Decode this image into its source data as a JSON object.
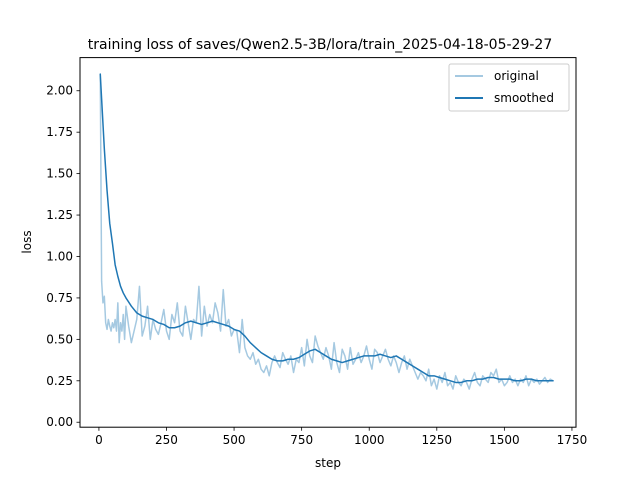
{
  "chart_data": {
    "type": "line",
    "title": "training loss of saves/Qwen2.5-3B/lora/train_2025-04-18-05-29-27",
    "xlabel": "step",
    "ylabel": "loss",
    "xlim": [
      -70,
      1765
    ],
    "ylim": [
      -0.03,
      2.2
    ],
    "xticks": [
      0,
      250,
      500,
      750,
      1000,
      1250,
      1500,
      1750
    ],
    "yticks": [
      0.0,
      0.25,
      0.5,
      0.75,
      1.0,
      1.25,
      1.5,
      1.75,
      2.0
    ],
    "xtick_labels": [
      "0",
      "250",
      "500",
      "750",
      "1000",
      "1250",
      "1500",
      "1750"
    ],
    "ytick_labels": [
      "0.00",
      "0.25",
      "0.50",
      "0.75",
      "1.00",
      "1.25",
      "1.50",
      "1.75",
      "2.00"
    ],
    "grid": false,
    "legend": {
      "position": "top-right"
    },
    "series": [
      {
        "name": "original",
        "color": "#1f77b4",
        "opacity": 0.4,
        "x": [
          5,
          10,
          15,
          20,
          25,
          30,
          35,
          40,
          45,
          50,
          55,
          60,
          65,
          70,
          75,
          80,
          85,
          90,
          95,
          100,
          110,
          120,
          130,
          140,
          150,
          160,
          170,
          180,
          190,
          200,
          210,
          220,
          230,
          240,
          250,
          260,
          270,
          280,
          290,
          300,
          310,
          320,
          330,
          340,
          350,
          360,
          370,
          380,
          390,
          400,
          410,
          420,
          430,
          440,
          450,
          460,
          470,
          480,
          490,
          500,
          510,
          520,
          530,
          540,
          550,
          560,
          570,
          580,
          590,
          600,
          610,
          620,
          630,
          640,
          650,
          660,
          670,
          680,
          690,
          700,
          710,
          720,
          730,
          740,
          750,
          760,
          770,
          780,
          790,
          800,
          810,
          820,
          830,
          840,
          850,
          860,
          870,
          880,
          890,
          900,
          910,
          920,
          930,
          940,
          950,
          960,
          970,
          980,
          990,
          1000,
          1010,
          1020,
          1030,
          1040,
          1050,
          1060,
          1070,
          1080,
          1090,
          1100,
          1110,
          1120,
          1130,
          1140,
          1150,
          1160,
          1170,
          1180,
          1190,
          1200,
          1210,
          1220,
          1230,
          1240,
          1250,
          1260,
          1270,
          1280,
          1290,
          1300,
          1310,
          1320,
          1330,
          1340,
          1350,
          1360,
          1370,
          1380,
          1390,
          1400,
          1410,
          1420,
          1430,
          1440,
          1450,
          1460,
          1470,
          1480,
          1490,
          1500,
          1510,
          1520,
          1530,
          1540,
          1550,
          1560,
          1570,
          1580,
          1590,
          1600,
          1610,
          1620,
          1630,
          1640,
          1650,
          1660,
          1670,
          1680
        ],
        "y": [
          2.1,
          0.85,
          0.72,
          0.76,
          0.6,
          0.56,
          0.62,
          0.58,
          0.55,
          0.6,
          0.57,
          0.62,
          0.55,
          0.72,
          0.48,
          0.6,
          0.55,
          0.65,
          0.5,
          0.7,
          0.58,
          0.48,
          0.55,
          0.62,
          0.82,
          0.52,
          0.58,
          0.7,
          0.5,
          0.62,
          0.56,
          0.53,
          0.6,
          0.68,
          0.55,
          0.5,
          0.65,
          0.6,
          0.72,
          0.55,
          0.52,
          0.7,
          0.6,
          0.5,
          0.62,
          0.6,
          0.82,
          0.52,
          0.7,
          0.58,
          0.65,
          0.6,
          0.72,
          0.66,
          0.55,
          0.8,
          0.58,
          0.62,
          0.52,
          0.56,
          0.55,
          0.42,
          0.62,
          0.45,
          0.4,
          0.38,
          0.42,
          0.35,
          0.38,
          0.32,
          0.3,
          0.34,
          0.28,
          0.36,
          0.4,
          0.36,
          0.33,
          0.42,
          0.38,
          0.35,
          0.4,
          0.3,
          0.38,
          0.36,
          0.45,
          0.34,
          0.5,
          0.4,
          0.36,
          0.52,
          0.46,
          0.42,
          0.38,
          0.45,
          0.4,
          0.32,
          0.48,
          0.36,
          0.3,
          0.44,
          0.4,
          0.32,
          0.45,
          0.35,
          0.38,
          0.42,
          0.36,
          0.4,
          0.46,
          0.38,
          0.32,
          0.44,
          0.42,
          0.36,
          0.4,
          0.44,
          0.38,
          0.34,
          0.4,
          0.36,
          0.3,
          0.36,
          0.4,
          0.32,
          0.38,
          0.34,
          0.3,
          0.26,
          0.3,
          0.28,
          0.25,
          0.32,
          0.22,
          0.26,
          0.2,
          0.28,
          0.24,
          0.3,
          0.22,
          0.24,
          0.2,
          0.28,
          0.24,
          0.22,
          0.26,
          0.24,
          0.2,
          0.26,
          0.3,
          0.24,
          0.22,
          0.28,
          0.26,
          0.24,
          0.3,
          0.28,
          0.32,
          0.24,
          0.26,
          0.22,
          0.24,
          0.28,
          0.24,
          0.26,
          0.22,
          0.26,
          0.24,
          0.28,
          0.22,
          0.26,
          0.24,
          0.26,
          0.23,
          0.25,
          0.27,
          0.24,
          0.26,
          0.25
        ]
      },
      {
        "name": "smoothed",
        "color": "#1f77b4",
        "opacity": 1.0,
        "x": [
          5,
          10,
          20,
          30,
          40,
          50,
          60,
          70,
          80,
          90,
          100,
          120,
          140,
          160,
          180,
          200,
          220,
          240,
          260,
          280,
          300,
          320,
          340,
          360,
          380,
          400,
          420,
          440,
          460,
          480,
          500,
          520,
          540,
          560,
          580,
          600,
          620,
          640,
          660,
          680,
          700,
          720,
          740,
          760,
          780,
          800,
          820,
          840,
          860,
          880,
          900,
          920,
          940,
          960,
          980,
          1000,
          1020,
          1040,
          1060,
          1080,
          1100,
          1120,
          1140,
          1160,
          1180,
          1200,
          1220,
          1240,
          1260,
          1280,
          1300,
          1320,
          1340,
          1360,
          1380,
          1400,
          1420,
          1440,
          1460,
          1480,
          1500,
          1520,
          1540,
          1560,
          1580,
          1600,
          1620,
          1640,
          1660,
          1680
        ],
        "y": [
          2.1,
          1.95,
          1.65,
          1.4,
          1.2,
          1.08,
          0.95,
          0.88,
          0.82,
          0.78,
          0.75,
          0.7,
          0.66,
          0.64,
          0.63,
          0.62,
          0.6,
          0.59,
          0.57,
          0.57,
          0.58,
          0.6,
          0.61,
          0.6,
          0.59,
          0.6,
          0.61,
          0.6,
          0.59,
          0.58,
          0.56,
          0.55,
          0.52,
          0.48,
          0.45,
          0.42,
          0.4,
          0.38,
          0.37,
          0.37,
          0.38,
          0.38,
          0.39,
          0.41,
          0.43,
          0.44,
          0.42,
          0.4,
          0.38,
          0.37,
          0.36,
          0.37,
          0.38,
          0.39,
          0.4,
          0.4,
          0.4,
          0.41,
          0.4,
          0.39,
          0.4,
          0.38,
          0.36,
          0.34,
          0.32,
          0.3,
          0.28,
          0.28,
          0.27,
          0.26,
          0.25,
          0.24,
          0.24,
          0.25,
          0.25,
          0.26,
          0.26,
          0.27,
          0.27,
          0.26,
          0.26,
          0.26,
          0.25,
          0.25,
          0.26,
          0.26,
          0.25,
          0.25,
          0.25,
          0.25
        ]
      }
    ]
  }
}
